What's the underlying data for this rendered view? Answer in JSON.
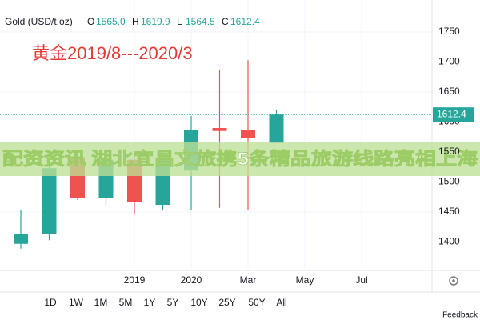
{
  "chart_data": {
    "type": "candlestick",
    "title": "Gold (USD/t.oz)",
    "ohlc": [
      {
        "key": "O",
        "value": 1565,
        "label": "1565.0"
      },
      {
        "key": "H",
        "value": 1619.9,
        "label": "1619.9"
      },
      {
        "key": "L",
        "value": 1564.5,
        "label": "1564.5"
      },
      {
        "key": "C",
        "value": 1612.4,
        "label": "1612.4"
      }
    ],
    "annotation": "黄金2019/8---2020/3",
    "banner": "配资资讯 湖北宜昌文旅携5条精品旅游线路亮相上海",
    "categories": [
      null,
      null,
      null,
      null,
      "2019",
      null,
      "2020",
      null,
      "Mar",
      null,
      "May",
      null,
      "Jul",
      null
    ],
    "series": {
      "open": [
        1397,
        1413,
        1541,
        1473,
        1537,
        1462,
        1519,
        1590,
        1586,
        1565,
        null,
        null,
        null,
        null
      ],
      "high": [
        1453,
        1537,
        1550,
        1550,
        1546,
        1550,
        1610,
        1687,
        1703,
        1619.9,
        null,
        null,
        null,
        null
      ],
      "low": [
        1389,
        1403,
        1470,
        1459,
        1446,
        1453,
        1454,
        1457,
        1453,
        1564.5,
        null,
        null,
        null,
        null
      ],
      "close": [
        1414,
        1523,
        1473,
        1537,
        1466,
        1537,
        1586,
        1585,
        1573,
        1612.4,
        null,
        null,
        null,
        null
      ]
    },
    "up_color": "#26a69a",
    "down_color": "#ef5350",
    "last_price": 1612.4,
    "ylim": [
      1352.7,
      1803.3
    ],
    "yticks": [
      1400,
      1450,
      1500,
      1550,
      1600,
      1650,
      1700,
      1750
    ],
    "grid": true,
    "range_buttons": [
      "1D",
      "1W",
      "1M",
      "5M",
      "1Y",
      "5Y",
      "10Y",
      "25Y",
      "50Y",
      "All"
    ],
    "feedback": "Feedback"
  }
}
